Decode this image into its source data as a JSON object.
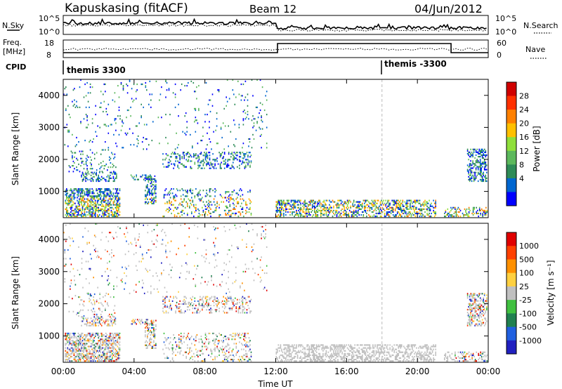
{
  "header": {
    "station": "Kapuskasing (fitACF)",
    "beam": "Beam 12",
    "date": "04/Jun/2012"
  },
  "top_panels": {
    "nsky_label": "N.Sky",
    "nsky_ticks": [
      "10^5",
      "10^0"
    ],
    "nsearch_label": "N.Search",
    "nsearch_ticks": [
      "10^5",
      "10^0"
    ],
    "freq_label": "Freq.",
    "freq_unit": "[MHz]",
    "freq_ticks": [
      "18",
      "8"
    ],
    "nave_label": "Nave",
    "nave_ticks": [
      "60",
      "0"
    ],
    "cpid_label": "CPID",
    "cpid_segments": [
      {
        "label": "themis 3300",
        "start_h": 0,
        "end_h": 18
      },
      {
        "label": "themis -3300",
        "start_h": 18,
        "end_h": 24
      }
    ]
  },
  "chart_data": [
    {
      "type": "heatmap",
      "title": "",
      "xlabel": "",
      "ylabel": "Slant Range [km]",
      "yticks": [
        "1000",
        "2000",
        "3000",
        "4000"
      ],
      "ylim": [
        180,
        4500
      ],
      "xlim": [
        0,
        24
      ],
      "colorbar_label": "Power [dB]",
      "colorbar_ticks": [
        "28",
        "24",
        "20",
        "16",
        "12",
        "8",
        "4"
      ],
      "colorbar_colors": [
        "#0000ff",
        "#0066d0",
        "#2e8b57",
        "#5cb85c",
        "#8fdf3b",
        "#ffc000",
        "#ff8000",
        "#ff3000",
        "#d00000"
      ]
    },
    {
      "type": "heatmap",
      "title": "",
      "xlabel": "Time UT",
      "ylabel": "Slant Range [km]",
      "yticks": [
        "1000",
        "2000",
        "3000",
        "4000"
      ],
      "xticks": [
        "00:00",
        "04:00",
        "08:00",
        "12:00",
        "16:00",
        "20:00",
        "00:00"
      ],
      "ylim": [
        180,
        4500
      ],
      "xlim": [
        0,
        24
      ],
      "colorbar_label": "Velocity [m s⁻¹]",
      "colorbar_ticks": [
        "1000",
        "500",
        "100",
        "25",
        "-25",
        "-100",
        "-500",
        "-1000"
      ],
      "colorbar_colors": [
        "#2020c0",
        "#2060e0",
        "#208050",
        "#40c040",
        "#c0c0c0",
        "#ffd040",
        "#ff9000",
        "#ff4000",
        "#e00000"
      ]
    }
  ]
}
